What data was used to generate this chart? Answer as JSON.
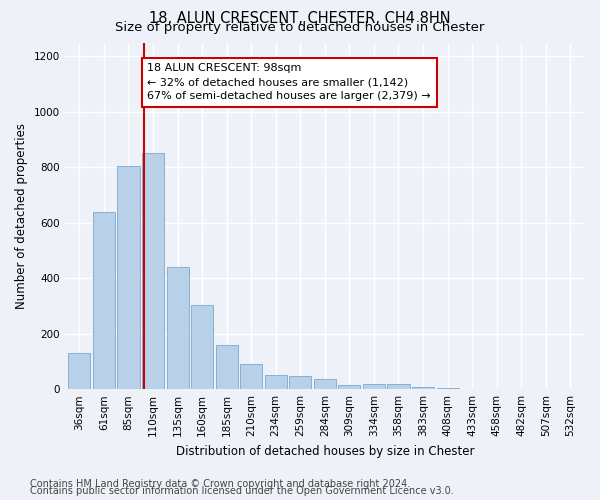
{
  "title": "18, ALUN CRESCENT, CHESTER, CH4 8HN",
  "subtitle": "Size of property relative to detached houses in Chester",
  "xlabel": "Distribution of detached houses by size in Chester",
  "ylabel": "Number of detached properties",
  "categories": [
    "36sqm",
    "61sqm",
    "85sqm",
    "110sqm",
    "135sqm",
    "160sqm",
    "185sqm",
    "210sqm",
    "234sqm",
    "259sqm",
    "284sqm",
    "309sqm",
    "334sqm",
    "358sqm",
    "383sqm",
    "408sqm",
    "433sqm",
    "458sqm",
    "482sqm",
    "507sqm",
    "532sqm"
  ],
  "values": [
    130,
    638,
    805,
    850,
    440,
    305,
    158,
    92,
    50,
    48,
    35,
    15,
    18,
    18,
    8,
    4,
    2,
    2,
    1,
    1,
    1
  ],
  "bar_color": "#b8d0e8",
  "bar_edge_color": "#7aaad0",
  "red_line_color": "#cc0000",
  "annotation_text": "18 ALUN CRESCENT: 98sqm\n← 32% of detached houses are smaller (1,142)\n67% of semi-detached houses are larger (2,379) →",
  "annotation_box_color": "#ffffff",
  "annotation_box_edge_color": "#cc0000",
  "ylim": [
    0,
    1250
  ],
  "yticks": [
    0,
    200,
    400,
    600,
    800,
    1000,
    1200
  ],
  "footer_line1": "Contains HM Land Registry data © Crown copyright and database right 2024.",
  "footer_line2": "Contains public sector information licensed under the Open Government Licence v3.0.",
  "background_color": "#eef2f8",
  "grid_color": "#ffffff",
  "title_fontsize": 10.5,
  "subtitle_fontsize": 9.5,
  "axis_label_fontsize": 8.5,
  "tick_fontsize": 7.5,
  "annotation_fontsize": 8,
  "footer_fontsize": 7
}
